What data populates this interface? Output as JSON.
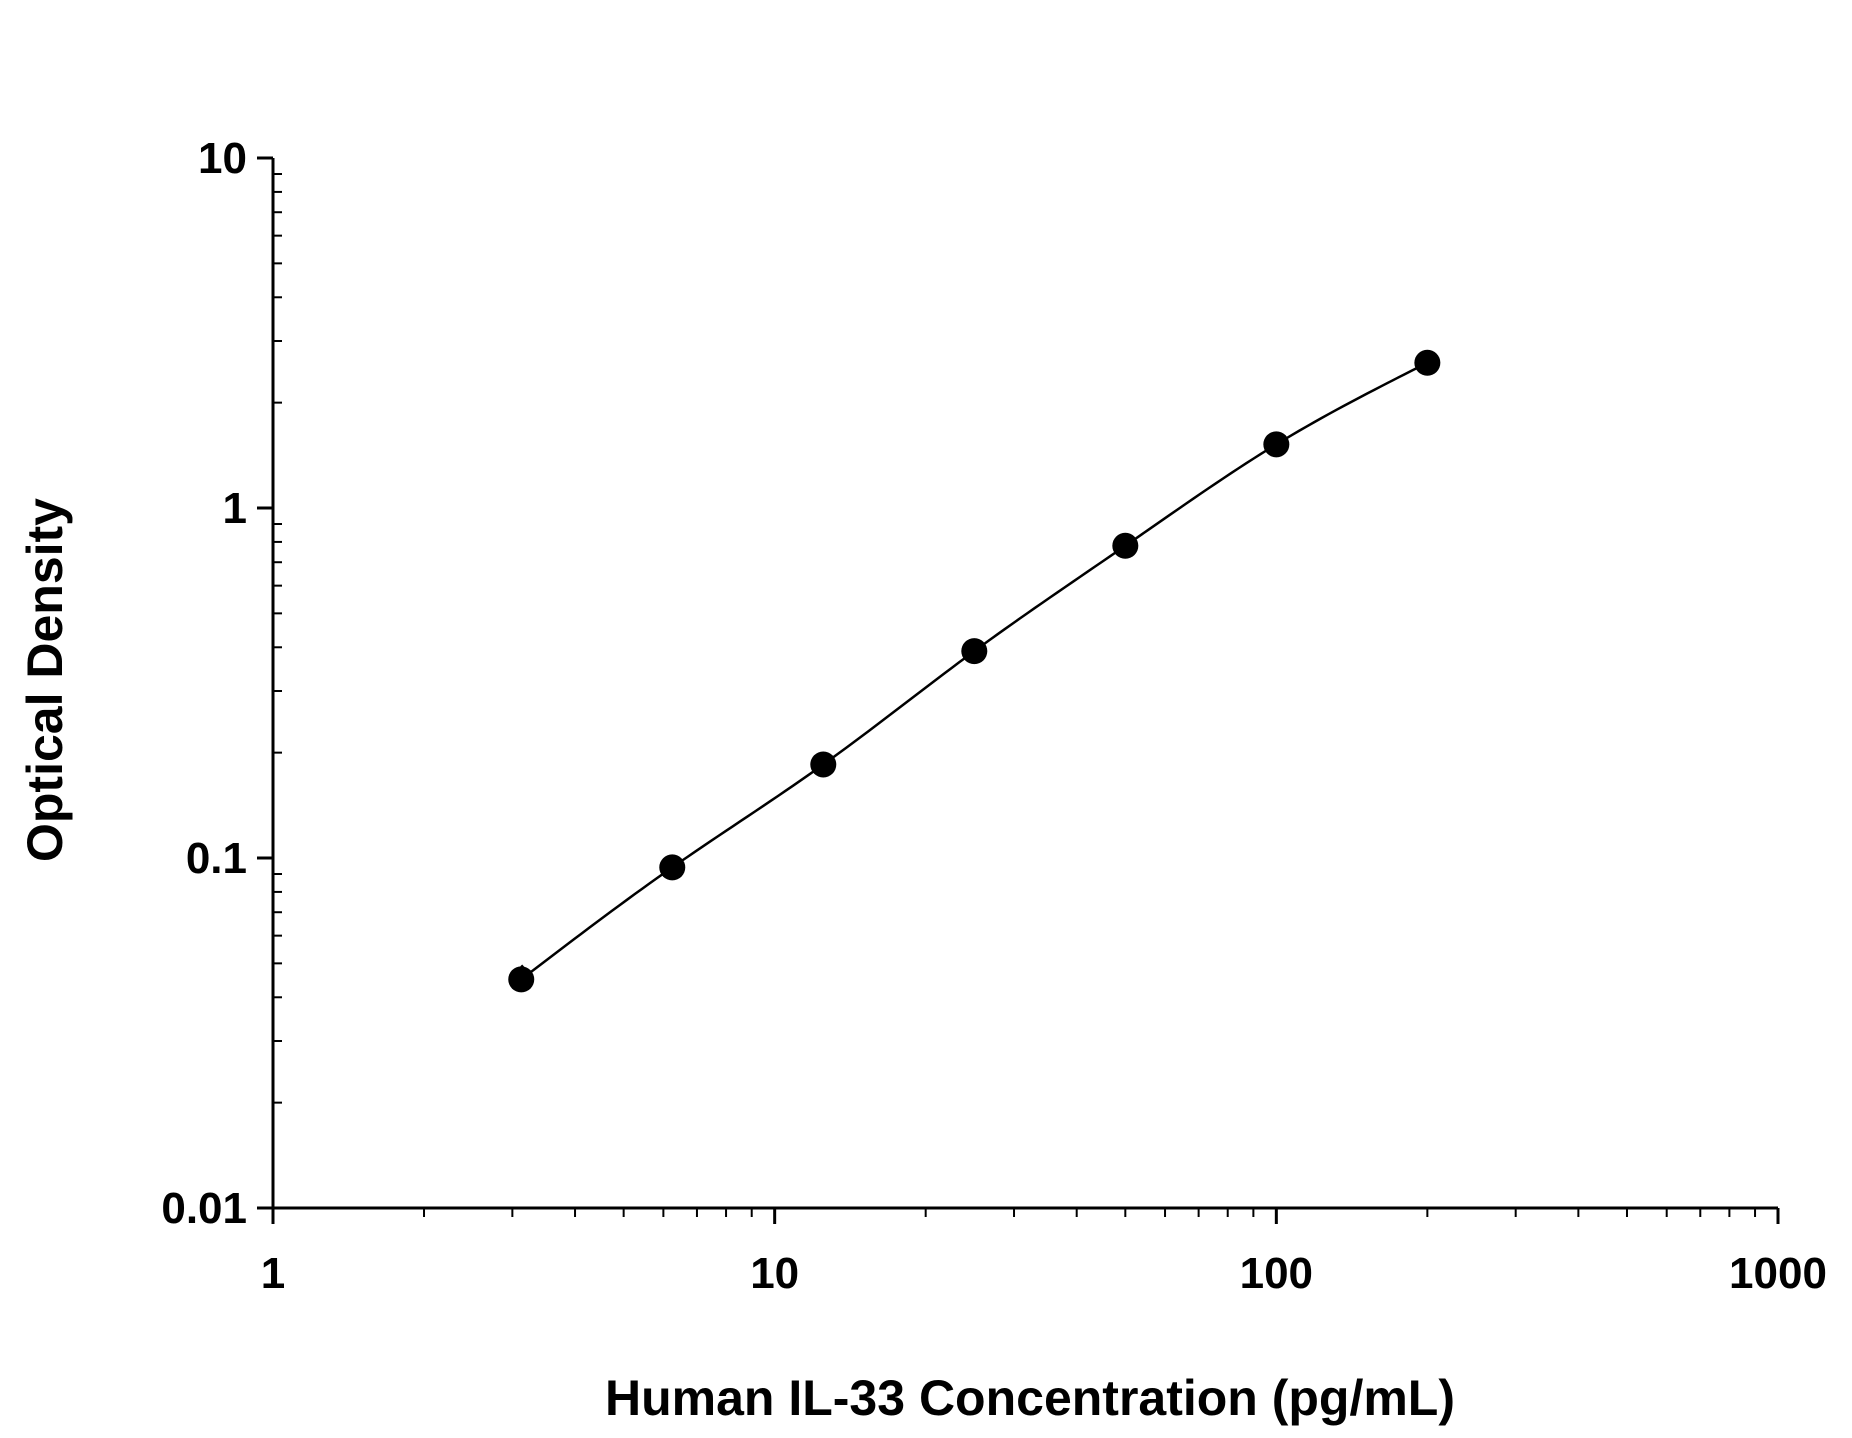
{
  "chart_data": {
    "type": "scatter",
    "title": "",
    "xlabel": "Human IL-33 Concentration (pg/mL)",
    "ylabel": "Optical Density",
    "x_scale": "log",
    "y_scale": "log",
    "xlim": [
      1,
      1000
    ],
    "ylim": [
      0.01,
      10
    ],
    "x_tick_labels": [
      "1",
      "10",
      "100",
      "1000"
    ],
    "y_tick_labels": [
      "0.01",
      "0.1",
      "1",
      "10"
    ],
    "grid": false,
    "legend": "none",
    "series": [
      {
        "marker": "filled-circle",
        "color": "#000000",
        "x": [
          3.125,
          6.25,
          12.5,
          25,
          50,
          100,
          200
        ],
        "y": [
          0.045,
          0.094,
          0.185,
          0.39,
          0.78,
          1.52,
          2.6
        ]
      }
    ],
    "fit_curve": {
      "type": "four-parameter-logistic",
      "color": "#000000",
      "x_range": [
        3.125,
        200
      ]
    }
  }
}
